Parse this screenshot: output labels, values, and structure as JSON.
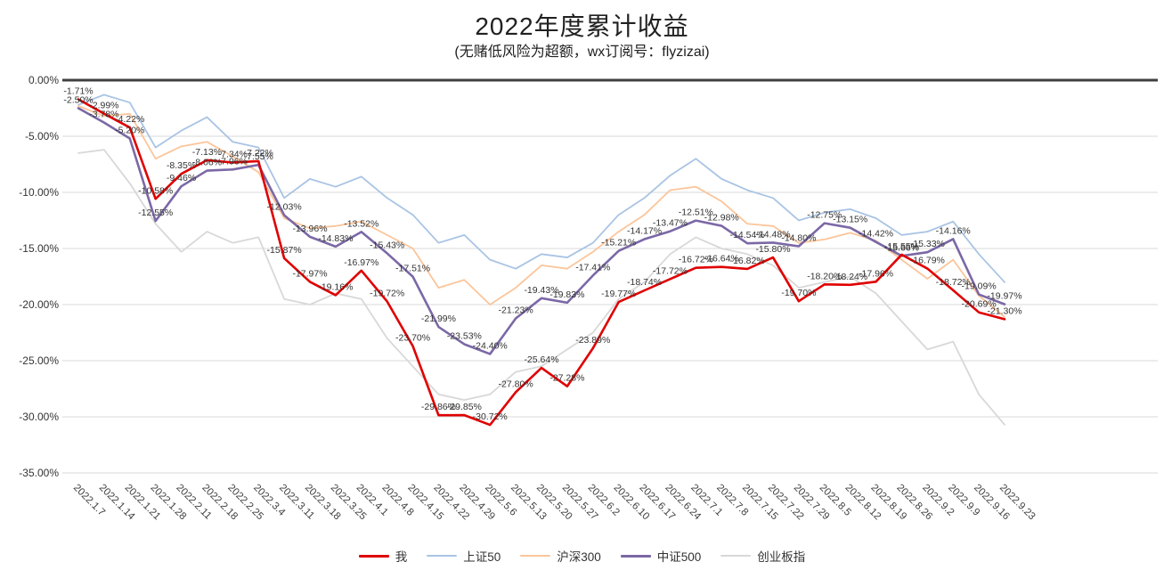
{
  "title": "2022年度累计收益",
  "subtitle": "(无赌低风险为超额，wx订阅号：flyzizai)",
  "chart_data": {
    "type": "line",
    "title": "2022年度累计收益",
    "subtitle": "(无赌低风险为超额，wx订阅号：flyzizai)",
    "x": [
      "2022.1.7",
      "2022.1.14",
      "2022.1.21",
      "2022.1.28",
      "2022.2.11",
      "2022.2.18",
      "2022.2.25",
      "2022.3.4",
      "2022.3.11",
      "2022.3.18",
      "2022.3.25",
      "2022.4.1",
      "2022.4.8",
      "2022.4.15",
      "2022.4.22",
      "2022.4.29",
      "2022.5.6",
      "2022.5.13",
      "2022.5.20",
      "2022.5.27",
      "2022.6.2",
      "2022.6.10",
      "2022.6.17",
      "2022.6.24",
      "2022.7.1",
      "2022.7.8",
      "2022.7.15",
      "2022.7.22",
      "2022.7.29",
      "2022.8.5",
      "2022.8.12",
      "2022.8.19",
      "2022.8.26",
      "2022.9.2",
      "2022.9.9",
      "2022.9.16",
      "2022.9.23"
    ],
    "ylim": [
      -35,
      0
    ],
    "ytick_step": 5,
    "yticks": [
      "0.00%",
      "-5.00%",
      "-10.00%",
      "-15.00%",
      "-20.00%",
      "-25.00%",
      "-30.00%",
      "-35.00%"
    ],
    "grid": true,
    "legend_position": "bottom",
    "series": [
      {
        "key": "me",
        "name": "我",
        "color": "#e00000",
        "labeled": true,
        "values": [
          -1.71,
          -2.99,
          -4.22,
          -10.58,
          -8.35,
          -7.13,
          -7.34,
          -7.22,
          -15.87,
          -17.97,
          -19.16,
          -16.97,
          -19.72,
          -23.7,
          -29.86,
          -29.85,
          -30.72,
          -27.8,
          -25.64,
          -27.28,
          -23.89,
          -19.77,
          -18.74,
          -17.72,
          -16.72,
          -16.64,
          -16.82,
          -15.8,
          -19.7,
          -18.2,
          -18.24,
          -17.96,
          -15.55,
          -16.79,
          -18.72,
          -20.69,
          -21.3
        ]
      },
      {
        "key": "sse50",
        "name": "上证50",
        "color": "#a9c4e4",
        "labeled": false,
        "values": [
          -2.2,
          -1.3,
          -2.0,
          -6.0,
          -4.5,
          -3.3,
          -5.5,
          -6.0,
          -10.5,
          -8.8,
          -9.5,
          -8.6,
          -10.5,
          -12.0,
          -14.5,
          -13.8,
          -16.0,
          -16.8,
          -15.5,
          -15.8,
          -14.5,
          -12.0,
          -10.5,
          -8.5,
          -7.0,
          -8.8,
          -9.8,
          -10.5,
          -12.5,
          -11.8,
          -11.5,
          -12.3,
          -13.8,
          -13.5,
          -12.6,
          -15.5,
          -18.0
        ]
      },
      {
        "key": "hs300",
        "name": "沪深300",
        "color": "#fbc59b",
        "labeled": false,
        "values": [
          -2.3,
          -3.2,
          -3.0,
          -7.0,
          -5.9,
          -5.5,
          -6.8,
          -8.2,
          -12.3,
          -13.2,
          -13.0,
          -12.6,
          -13.8,
          -15.0,
          -18.5,
          -17.8,
          -20.0,
          -18.5,
          -16.5,
          -16.8,
          -15.3,
          -13.5,
          -12.0,
          -9.8,
          -9.5,
          -10.8,
          -12.8,
          -13.0,
          -14.5,
          -14.2,
          -13.6,
          -14.3,
          -16.0,
          -17.7,
          -16.0,
          -19.2,
          -21.1
        ]
      },
      {
        "key": "zz500",
        "name": "中证500",
        "color": "#7b68a6",
        "labeled": true,
        "values": [
          -2.5,
          -3.78,
          -5.2,
          -12.55,
          -9.46,
          -8.06,
          -7.96,
          -7.55,
          -12.03,
          -13.96,
          -14.83,
          -13.52,
          -15.43,
          -17.51,
          -21.99,
          -23.53,
          -24.4,
          -21.23,
          -19.43,
          -19.83,
          -17.41,
          -15.21,
          -14.17,
          -13.47,
          -12.51,
          -12.98,
          -14.54,
          -14.48,
          -14.8,
          -12.75,
          -13.15,
          -14.42,
          -15.66,
          -15.33,
          -14.16,
          -19.09,
          -19.97
        ]
      },
      {
        "key": "cyb",
        "name": "创业板指",
        "color": "#d8d8d8",
        "labeled": false,
        "values": [
          -6.5,
          -6.2,
          -9.2,
          -12.8,
          -15.3,
          -13.5,
          -14.5,
          -14.0,
          -19.5,
          -20.0,
          -19.0,
          -19.5,
          -23.0,
          -25.5,
          -28.0,
          -28.5,
          -28.0,
          -26.0,
          -25.5,
          -24.0,
          -22.5,
          -19.5,
          -18.0,
          -15.5,
          -14.0,
          -15.0,
          -15.5,
          -16.5,
          -18.5,
          -18.0,
          -17.5,
          -19.0,
          -21.5,
          -24.0,
          -23.3,
          -28.0,
          -30.7
        ]
      }
    ]
  }
}
